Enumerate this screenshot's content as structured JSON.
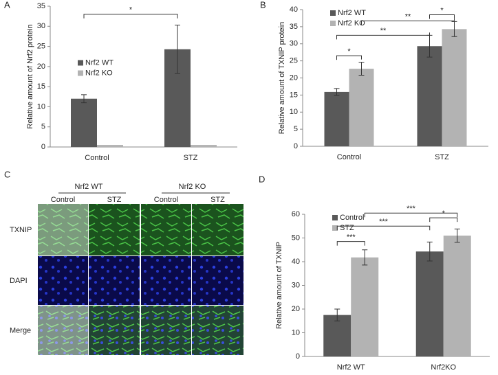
{
  "chart_data": [
    {
      "type": "bar",
      "panel": "A",
      "y_label": "Relative amount of Nrf2 protein",
      "categories": [
        "Control",
        "STZ"
      ],
      "series": [
        {
          "name": "Nrf2 WT",
          "color": "#595959",
          "values": [
            12,
            24.3
          ],
          "errors": [
            1,
            6
          ]
        },
        {
          "name": "Nrf2 KO",
          "color": "#b3b3b3",
          "values": [
            0.5,
            0.5
          ],
          "errors": [
            null,
            null
          ]
        }
      ],
      "ylim": [
        0,
        35
      ],
      "yticks": [
        0,
        5,
        10,
        15,
        20,
        25,
        30,
        35
      ],
      "legend": "center-left",
      "annotations": [
        "*"
      ]
    },
    {
      "type": "bar",
      "panel": "B",
      "y_label": "Relative amount of TXNIP protein",
      "categories": [
        "Control",
        "STZ"
      ],
      "series": [
        {
          "name": "Nrf2 WT",
          "color": "#595959",
          "values": [
            15.9,
            29.3
          ],
          "errors": [
            1,
            3.2
          ]
        },
        {
          "name": "Nrf2 KO",
          "color": "#b3b3b3",
          "values": [
            22.7,
            34.3
          ],
          "errors": [
            1.9,
            2.2
          ]
        }
      ],
      "ylim": [
        0,
        40
      ],
      "yticks": [
        0,
        5,
        10,
        15,
        20,
        25,
        30,
        35,
        40
      ],
      "legend": "top-left",
      "annotations": [
        "*",
        "**",
        "**",
        "*"
      ]
    },
    {
      "type": "bar",
      "panel": "D",
      "y_label": "Relative amount of TXNIP",
      "categories": [
        "Nrf2 WT",
        "Nrf2KO"
      ],
      "series": [
        {
          "name": "Control",
          "color": "#595959",
          "values": [
            17.5,
            44.3
          ],
          "errors": [
            2.5,
            4
          ]
        },
        {
          "name": "STZ",
          "color": "#b3b3b3",
          "values": [
            41.8,
            51
          ],
          "errors": [
            3.2,
            2.8
          ]
        }
      ],
      "ylim": [
        0,
        60
      ],
      "yticks": [
        0,
        10,
        20,
        30,
        40,
        50,
        60
      ],
      "legend": "top-left",
      "annotations": [
        "***",
        "***",
        "***",
        "*"
      ]
    }
  ],
  "panel_c": {
    "panel": "C",
    "groups": [
      "Nrf2 WT",
      "Nrf2 KO"
    ],
    "columns": [
      "Control",
      "STZ",
      "Control",
      "STZ"
    ],
    "rows": [
      "TXNIP",
      "DAPI",
      "Merge"
    ]
  }
}
